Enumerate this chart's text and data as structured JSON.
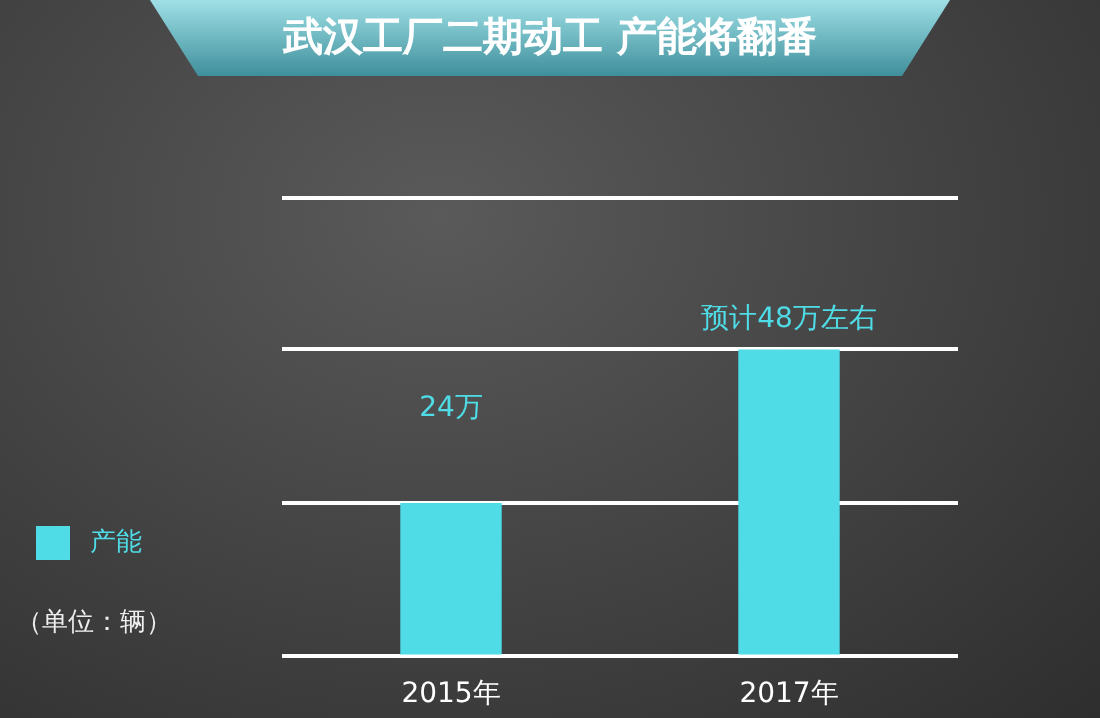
{
  "chart_data": {
    "type": "bar",
    "title": "武汉工厂二期动工 产能将翻番",
    "categories": [
      "2015年",
      "2017年"
    ],
    "series": [
      {
        "name": "产能",
        "color": "#4fdce6",
        "values": [
          24,
          48
        ],
        "value_labels": [
          "24万",
          "预计48万左右"
        ]
      }
    ],
    "ylim": [
      0,
      72
    ],
    "yticks": [
      {
        "value": 0,
        "label": null
      },
      {
        "value": 24,
        "label": null
      },
      {
        "value": 48,
        "label": null
      }
    ],
    "grid": "y",
    "legend": "left",
    "tick_labels": "x",
    "annotations": [
      "（单位：辆）"
    ]
  }
}
